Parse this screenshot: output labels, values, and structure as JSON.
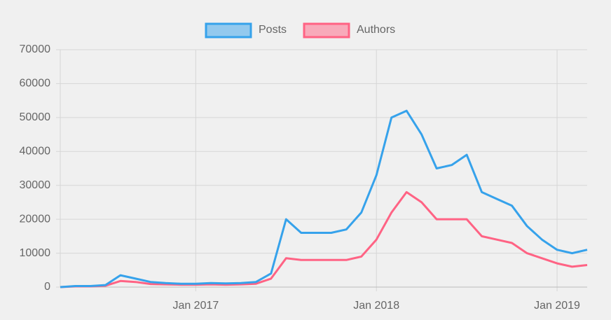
{
  "chart_data": {
    "type": "line",
    "x": [
      "2016-04",
      "2016-05",
      "2016-06",
      "2016-07",
      "2016-08",
      "2016-09",
      "2016-10",
      "2016-11",
      "2016-12",
      "2017-01",
      "2017-02",
      "2017-03",
      "2017-04",
      "2017-05",
      "2017-06",
      "2017-07",
      "2017-08",
      "2017-09",
      "2017-10",
      "2017-11",
      "2017-12",
      "2018-01",
      "2018-02",
      "2018-03",
      "2018-04",
      "2018-05",
      "2018-06",
      "2018-07",
      "2018-08",
      "2018-09",
      "2018-10",
      "2018-11",
      "2018-12",
      "2019-01",
      "2019-02",
      "2019-03"
    ],
    "series": [
      {
        "name": "Posts",
        "color": "#36a2eb",
        "values": [
          0,
          300,
          300,
          600,
          3500,
          2500,
          1500,
          1200,
          1000,
          1000,
          1200,
          1100,
          1200,
          1500,
          4000,
          20000,
          16000,
          16000,
          16000,
          17000,
          22000,
          33000,
          50000,
          52000,
          45000,
          35000,
          36000,
          39000,
          28000,
          26000,
          24000,
          18000,
          14000,
          11000,
          10000,
          11000
        ]
      },
      {
        "name": "Authors",
        "color": "#ff6384",
        "values": [
          0,
          200,
          200,
          400,
          1800,
          1500,
          900,
          800,
          700,
          700,
          800,
          700,
          800,
          1000,
          2500,
          8500,
          8000,
          8000,
          8000,
          8000,
          9000,
          14000,
          22000,
          28000,
          25000,
          20000,
          20000,
          20000,
          15000,
          14000,
          13000,
          10000,
          8500,
          7000,
          6000,
          6500
        ]
      }
    ],
    "xlim": [
      "2016-04",
      "2019-03"
    ],
    "xticks": [
      {
        "value": "2017-01",
        "label": "Jan 2017"
      },
      {
        "value": "2018-01",
        "label": "Jan 2018"
      },
      {
        "value": "2019-01",
        "label": "Jan 2019"
      }
    ],
    "ylim": [
      0,
      70000
    ],
    "yticks": [
      0,
      10000,
      20000,
      30000,
      40000,
      50000,
      60000,
      70000
    ],
    "grid": true,
    "legend": "top"
  }
}
